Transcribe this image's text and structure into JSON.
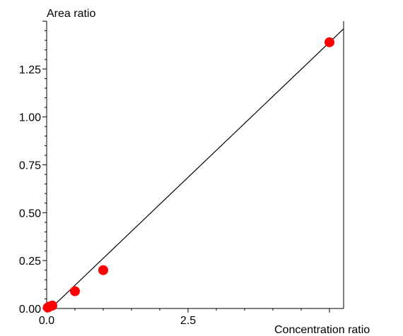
{
  "chart_data": {
    "type": "scatter",
    "ylabel": "Area ratio",
    "xlabel": "Concentration ratio",
    "xlim": [
      0,
      5.25
    ],
    "ylim": [
      0,
      1.5
    ],
    "x_ticks": [
      0.0,
      2.5
    ],
    "x_tick_labels": [
      "0.0",
      "2.5"
    ],
    "y_ticks": [
      0.0,
      0.25,
      0.5,
      0.75,
      1.0,
      1.25
    ],
    "y_tick_labels": [
      "0.00",
      "0.25",
      "0.50",
      "0.75",
      "1.00",
      "1.25"
    ],
    "points": [
      {
        "x": 0.02,
        "y": 0.005
      },
      {
        "x": 0.05,
        "y": 0.01
      },
      {
        "x": 0.1,
        "y": 0.015
      },
      {
        "x": 0.5,
        "y": 0.09
      },
      {
        "x": 1.0,
        "y": 0.2
      },
      {
        "x": 5.0,
        "y": 1.39
      }
    ],
    "fit_line": {
      "x": [
        0,
        5.25
      ],
      "y": [
        -0.02,
        1.46
      ]
    },
    "point_color": "#ff0000",
    "line_color": "#000000",
    "grid": false
  }
}
